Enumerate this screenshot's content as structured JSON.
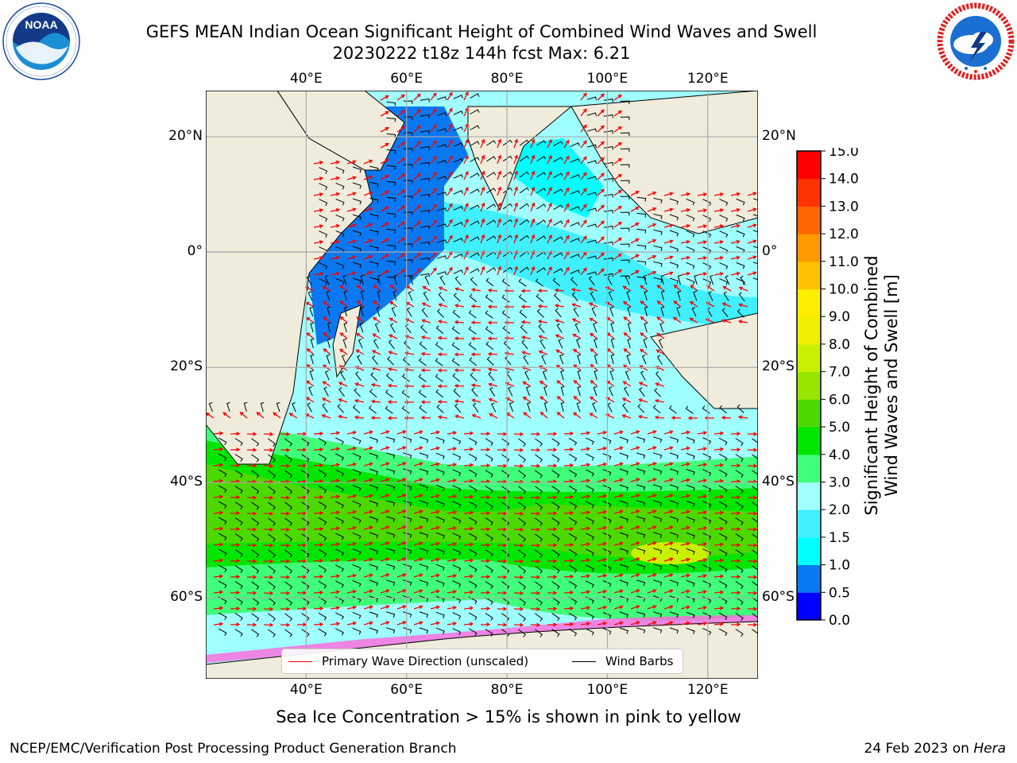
{
  "header": {
    "title_line1": "GEFS MEAN Indian Ocean Significant Height of Combined Wind Waves and Swell",
    "title_line2": "20230222 t18z 144h fcst   Max: 6.21"
  },
  "logos": {
    "left": "noaa-logo",
    "left_text": "NOAA",
    "right": "nws-logo"
  },
  "map": {
    "x_range_deg_east": [
      20,
      130
    ],
    "y_range_deg": [
      -74,
      28
    ],
    "lon_ticks": [
      {
        "value": 40,
        "label": "40°E"
      },
      {
        "value": 60,
        "label": "60°E"
      },
      {
        "value": 80,
        "label": "80°E"
      },
      {
        "value": 100,
        "label": "100°E"
      },
      {
        "value": 120,
        "label": "120°E"
      }
    ],
    "lat_ticks": [
      {
        "value": 20,
        "label": "20°N"
      },
      {
        "value": 0,
        "label": "0°"
      },
      {
        "value": -20,
        "label": "20°S"
      },
      {
        "value": -40,
        "label": "40°S"
      },
      {
        "value": -60,
        "label": "60°S"
      }
    ],
    "grid": true,
    "land_color": "#efecdc",
    "grid_color": "#aaaaaa"
  },
  "colorbar": {
    "title_line1": "Significant Height of Combined",
    "title_line2": "Wind Waves and Swell [m]",
    "levels": [
      "0.0",
      "0.5",
      "1.0",
      "1.5",
      "2.0",
      "3.0",
      "4.0",
      "5.0",
      "6.0",
      "7.0",
      "8.0",
      "9.0",
      "10.0",
      "11.0",
      "12.0",
      "13.0",
      "14.0",
      "15.0"
    ],
    "colors": [
      "#0000ff",
      "#0a78f0",
      "#00ffff",
      "#40f0ff",
      "#a0ffff",
      "#40ff7a",
      "#00e600",
      "#4cd900",
      "#98e600",
      "#c8f000",
      "#f0f000",
      "#ffee00",
      "#ffc000",
      "#ff9900",
      "#ff6600",
      "#ff3300",
      "#ff0000"
    ]
  },
  "legend": {
    "wave_label": "Primary Wave Direction (unscaled)",
    "wave_color": "#ff0000",
    "wind_label": "Wind Barbs",
    "wind_color": "#000000"
  },
  "footnote": "Sea Ice Concentration > 15% is shown in pink to yellow",
  "credits": {
    "left": "NCEP/EMC/Verification Post Processing Product Generation Branch",
    "right_prefix": "24 Feb 2023 on ",
    "right_host": "Hera"
  }
}
